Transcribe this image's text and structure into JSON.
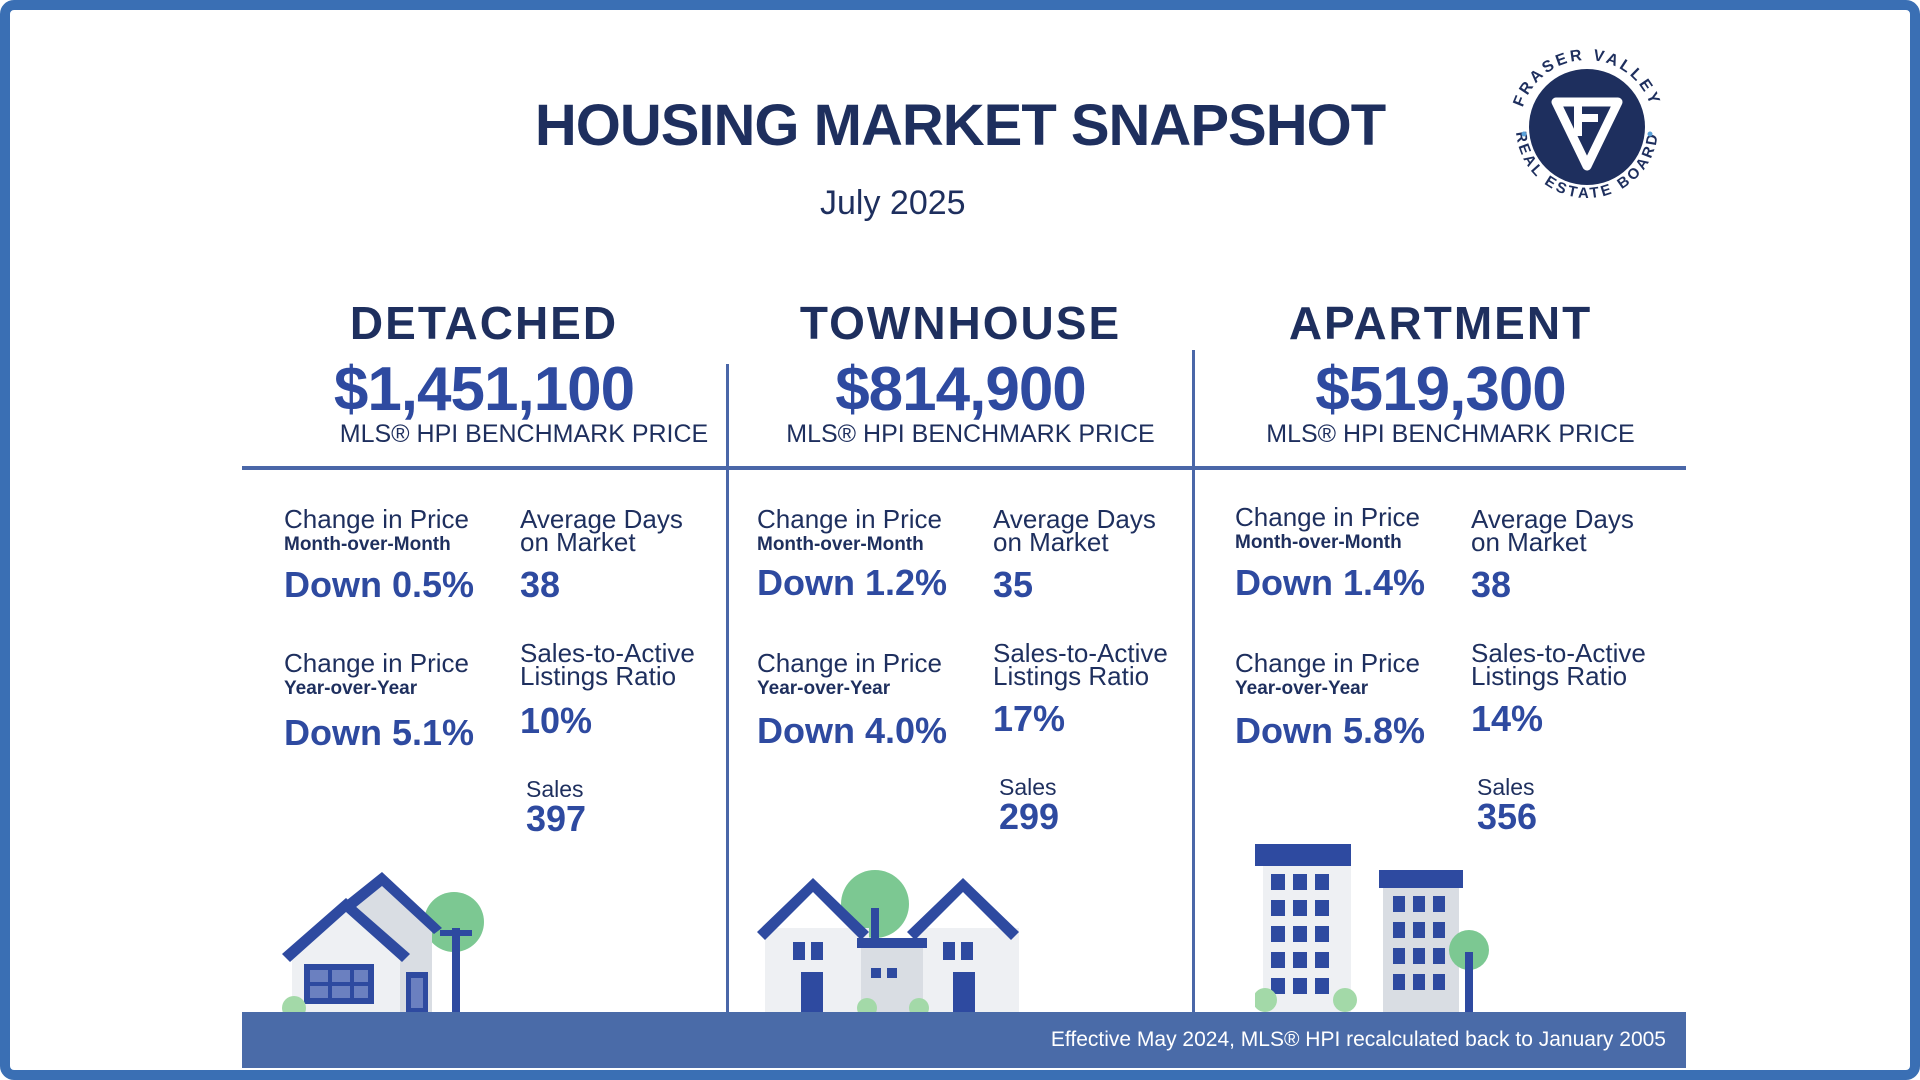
{
  "header": {
    "title": "HOUSING MARKET SNAPSHOT",
    "date": "July 2025"
  },
  "logo": {
    "text": "FRASER VALLEY REAL ESTATE BOARD",
    "icon": "fv-logo-icon"
  },
  "columns": [
    {
      "type": "DETACHED",
      "price": "$1,451,100",
      "benchmark_label": "MLS® HPI BENCHMARK PRICE",
      "mom_label": "Change in Price",
      "mom_sub": "Month-over-Month",
      "mom_value": "Down 0.5%",
      "dom_label_1": "Average Days",
      "dom_label_2": "on Market",
      "dom_value": "38",
      "yoy_label": "Change in Price",
      "yoy_sub": "Year-over-Year",
      "yoy_value": "Down 5.1%",
      "ratio_label_1": "Sales-to-Active",
      "ratio_label_2": "Listings Ratio",
      "ratio_value": "10%",
      "sales_label": "Sales",
      "sales_value": "397",
      "icon": "detached-house-icon"
    },
    {
      "type": "TOWNHOUSE",
      "price": "$814,900",
      "benchmark_label": "MLS® HPI BENCHMARK PRICE",
      "mom_label": "Change in Price",
      "mom_sub": "Month-over-Month",
      "mom_value": "Down 1.2%",
      "dom_label_1": "Average Days",
      "dom_label_2": "on Market",
      "dom_value": "35",
      "yoy_label": "Change in Price",
      "yoy_sub": "Year-over-Year",
      "yoy_value": "Down 4.0%",
      "ratio_label_1": "Sales-to-Active",
      "ratio_label_2": "Listings Ratio",
      "ratio_value": "17%",
      "sales_label": "Sales",
      "sales_value": "299",
      "icon": "townhouse-icon"
    },
    {
      "type": "APARTMENT",
      "price": "$519,300",
      "benchmark_label": "MLS® HPI BENCHMARK PRICE",
      "mom_label": "Change in Price",
      "mom_sub": "Month-over-Month",
      "mom_value": "Down 1.4%",
      "dom_label_1": "Average Days",
      "dom_label_2": "on Market",
      "dom_value": "38",
      "yoy_label": "Change in Price",
      "yoy_sub": "Year-over-Year",
      "yoy_value": "Down 5.8%",
      "ratio_label_1": "Sales-to-Active",
      "ratio_label_2": "Listings Ratio",
      "ratio_value": "14%",
      "sales_label": "Sales",
      "sales_value": "356",
      "icon": "apartment-building-icon"
    }
  ],
  "footer": {
    "note": "Effective May 2024, MLS® HPI recalculated back to January 2005"
  },
  "colors": {
    "navy": "#1e2f5e",
    "accent_blue": "#2e4aa0",
    "footer_bar": "#4a6ba8",
    "border": "#3a6fb4",
    "tree_green": "#7cc892"
  }
}
